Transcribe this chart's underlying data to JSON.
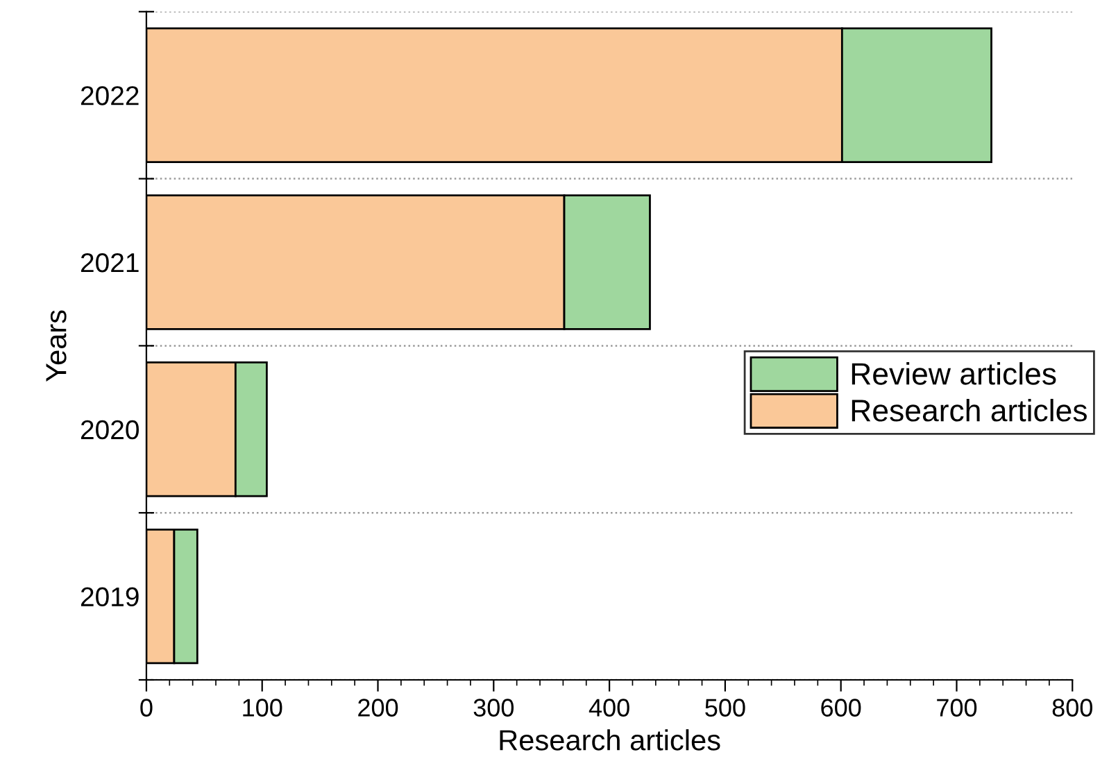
{
  "chart_data": {
    "type": "bar",
    "orientation": "horizontal",
    "stacked": true,
    "xlabel": "Research articles",
    "ylabel": "Years",
    "categories": [
      "2022",
      "2021",
      "2020",
      "2019"
    ],
    "series": [
      {
        "name": "Research articles",
        "color": "#fac898",
        "values": [
          601,
          361,
          77,
          24
        ]
      },
      {
        "name": "Review articles",
        "color": "#9fd79e",
        "values": [
          129,
          74,
          27,
          20
        ]
      }
    ],
    "xlim": [
      0,
      800
    ],
    "xticks": [
      0,
      100,
      200,
      300,
      400,
      500,
      600,
      700,
      800
    ],
    "grid": "y",
    "legend": "right"
  }
}
